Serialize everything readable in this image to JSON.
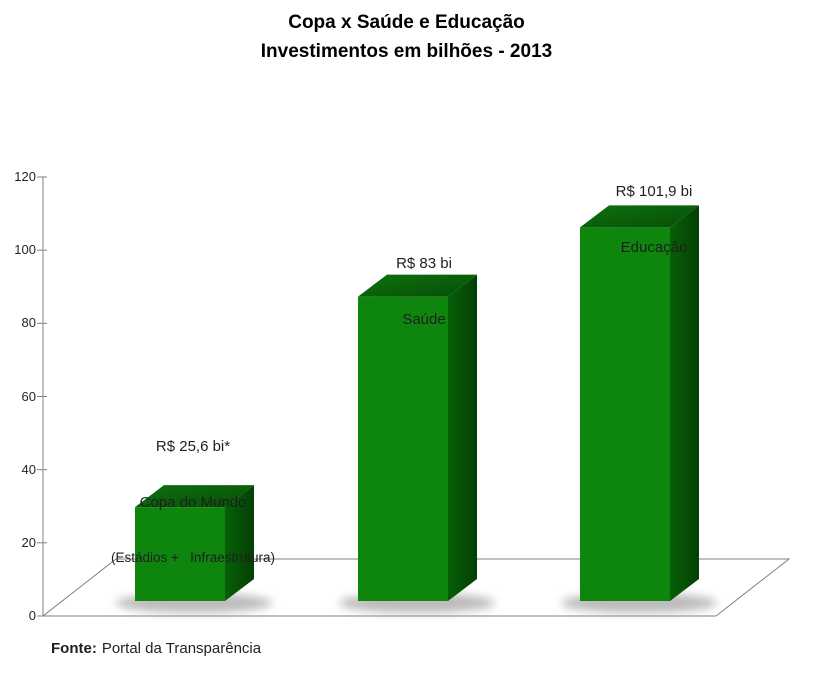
{
  "chart_data": {
    "type": "bar",
    "style": "3d",
    "title": "Copa x Saúde e Educação",
    "subtitle": "Investimentos em bilhões - 2013",
    "categories": [
      "Copa do Mundo (Estádios + Infraestrutura)",
      "Saúde",
      "Educação"
    ],
    "values": [
      25.6,
      83,
      101.9
    ],
    "ylim": [
      0,
      120
    ],
    "yticks": [
      0,
      20,
      40,
      60,
      80,
      100,
      120
    ],
    "grid": false,
    "legend": false,
    "bar_color": "#0e860e",
    "bar_top_colors": [
      "#0e720e",
      "#074d07"
    ],
    "bar_side_colors": [
      "#076007",
      "#043f04"
    ],
    "axis_color": "#808080",
    "annotations": [
      {
        "lines": [
          "R$ 25,6 bi*",
          "Copa do Mundo",
          "(Estádios +   Infraestrutura)"
        ]
      },
      {
        "lines": [
          "R$ 83 bi",
          "Saúde"
        ]
      },
      {
        "lines": [
          "R$ 101,9 bi",
          "Educação"
        ]
      }
    ]
  },
  "footer": {
    "source_label": "Fonte:",
    "source_text": "Portal da Transparência"
  }
}
